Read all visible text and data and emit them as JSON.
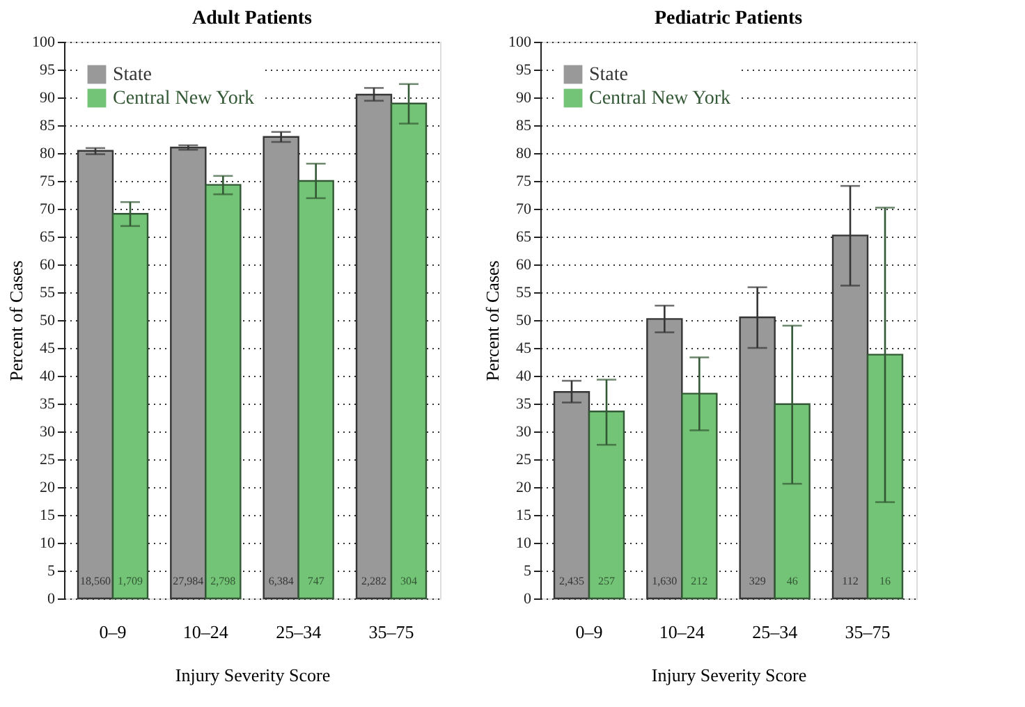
{
  "chart_data": [
    {
      "type": "bar",
      "title": "Adult Patients",
      "xlabel": "Injury Severity Score",
      "ylabel": "Percent of Cases",
      "categories": [
        "0–9",
        "10–24",
        "25–34",
        "35–75"
      ],
      "ylim": [
        0,
        100
      ],
      "yticks": [
        0,
        5,
        10,
        15,
        20,
        25,
        30,
        35,
        40,
        45,
        50,
        55,
        60,
        65,
        70,
        75,
        80,
        85,
        90,
        95,
        100
      ],
      "grid": "y",
      "legend": "top left",
      "series": [
        {
          "name": "State",
          "color": "#999999",
          "values": [
            80.4,
            81.0,
            82.9,
            90.5
          ],
          "errors": [
            [
              79.8,
              80.9
            ],
            [
              80.6,
              81.4
            ],
            [
              82.0,
              83.8
            ],
            [
              89.4,
              91.7
            ]
          ]
        },
        {
          "name": "Central New York",
          "color": "#73c476",
          "values": [
            69.1,
            74.3,
            75.0,
            88.9
          ],
          "errors": [
            [
              66.9,
              71.2
            ],
            [
              72.6,
              75.9
            ],
            [
              71.9,
              78.1
            ],
            [
              85.3,
              92.4
            ]
          ]
        }
      ],
      "annotations": [
        {
          "text": "18,560",
          "x": "0–9",
          "y": 2
        },
        {
          "text": "1,709",
          "x": "0–9",
          "y": 2
        },
        {
          "text": "27,984",
          "x": "10–24",
          "y": 2
        },
        {
          "text": "2,798",
          "x": "10–24",
          "y": 2
        },
        {
          "text": "6,384",
          "x": "25–34",
          "y": 2
        },
        {
          "text": "747",
          "x": "25–34",
          "y": 2
        },
        {
          "text": "2,282",
          "x": "35–75",
          "y": 2
        },
        {
          "text": "304",
          "x": "35–75",
          "y": 2
        }
      ]
    },
    {
      "type": "bar",
      "title": "Pediatric Patients",
      "xlabel": "Injury Severity Score",
      "ylabel": "Percent of Cases",
      "categories": [
        "0–9",
        "10–24",
        "25–34",
        "35–75"
      ],
      "ylim": [
        0,
        100
      ],
      "yticks": [
        0,
        5,
        10,
        15,
        20,
        25,
        30,
        35,
        40,
        45,
        50,
        55,
        60,
        65,
        70,
        75,
        80,
        85,
        90,
        95,
        100
      ],
      "grid": "y",
      "legend": "top left",
      "series": [
        {
          "name": "State",
          "color": "#999999",
          "values": [
            37.1,
            50.2,
            50.5,
            65.2
          ],
          "errors": [
            [
              35.2,
              39.1
            ],
            [
              47.8,
              52.6
            ],
            [
              45.0,
              55.9
            ],
            [
              56.2,
              74.1
            ]
          ]
        },
        {
          "name": "Central New York",
          "color": "#73c476",
          "values": [
            33.6,
            36.8,
            34.9,
            43.8
          ],
          "errors": [
            [
              27.6,
              39.3
            ],
            [
              30.2,
              43.3
            ],
            [
              20.6,
              49.0
            ],
            [
              17.3,
              70.2
            ]
          ]
        }
      ],
      "annotations": [
        {
          "text": "2,435",
          "x": "0–9",
          "y": 2
        },
        {
          "text": "257",
          "x": "0–9",
          "y": 2
        },
        {
          "text": "1,630",
          "x": "10–24",
          "y": 2
        },
        {
          "text": "212",
          "x": "10–24",
          "y": 2
        },
        {
          "text": "329",
          "x": "25–34",
          "y": 2
        },
        {
          "text": "46",
          "x": "25–34",
          "y": 2
        },
        {
          "text": "112",
          "x": "35–75",
          "y": 2
        },
        {
          "text": "16",
          "x": "35–75",
          "y": 2
        }
      ]
    }
  ]
}
